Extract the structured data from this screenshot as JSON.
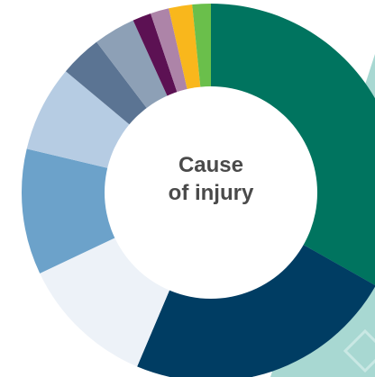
{
  "chart_data": {
    "type": "pie",
    "donut": true,
    "center_label": [
      "Cause",
      "of injury"
    ],
    "legend": "none",
    "slices": [
      {
        "value": 31.5,
        "color": "#00745f"
      },
      {
        "value": 22.0,
        "color": "#003d63"
      },
      {
        "value": 11.0,
        "color": "#edf2f8"
      },
      {
        "value": 10.2,
        "color": "#6ca2ca"
      },
      {
        "value": 7.0,
        "color": "#b6cce3"
      },
      {
        "value": 3.4,
        "color": "#5b7493"
      },
      {
        "value": 3.4,
        "color": "#8da0b6"
      },
      {
        "value": 1.5,
        "color": "#5c1153"
      },
      {
        "value": 1.5,
        "color": "#ad84a8"
      },
      {
        "value": 1.9,
        "color": "#f9b71c"
      },
      {
        "value": 1.5,
        "color": "#6abf4b"
      }
    ]
  },
  "background": {
    "pattern_color": "#a8d8d2"
  }
}
